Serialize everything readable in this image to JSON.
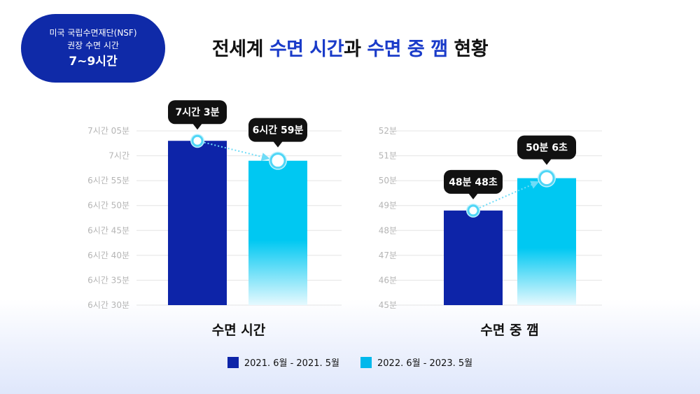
{
  "badge": {
    "line1": "미국 국립수면재단(NSF)",
    "line2": "권장 수면 시간",
    "line3": "7~9시간"
  },
  "title": {
    "part1": "전세계 ",
    "part2": "수면 시간",
    "part3": "과 ",
    "part4": "수면 중 깸",
    "part5": " 현황"
  },
  "colors": {
    "series1": "#0d24a8",
    "series2": "#00b8ec",
    "callout": "#111111",
    "grid": "#e4e4e4",
    "tick": "#b5b5b5"
  },
  "legend": {
    "series1": "2021. 6월 - 2021. 5월",
    "series2": "2022. 6월 - 2023. 5월"
  },
  "chart_data": [
    {
      "type": "bar",
      "title": "수면 시간",
      "unit": "minutes",
      "ylim": [
        390,
        425
      ],
      "yticks": [
        390,
        395,
        400,
        405,
        410,
        415,
        420,
        425
      ],
      "ytick_labels": [
        "6시간 30분",
        "6시간 35분",
        "6시간 40분",
        "6시간 45분",
        "6시간 50분",
        "6시간 55분",
        "7시간",
        "7시간 05분"
      ],
      "series": [
        {
          "name": "2021. 6월 - 2021. 5월",
          "values": [
            423
          ],
          "label": "7시간 3분"
        },
        {
          "name": "2022. 6월 - 2023. 5월",
          "values": [
            419
          ],
          "label": "6시간 59분"
        }
      ],
      "grid": true
    },
    {
      "type": "bar",
      "title": "수면 중 깸",
      "unit": "minutes",
      "ylim": [
        45,
        52
      ],
      "yticks": [
        45,
        46,
        47,
        48,
        49,
        50,
        51,
        52
      ],
      "ytick_labels": [
        "45분",
        "46분",
        "47분",
        "48분",
        "49분",
        "50분",
        "51분",
        "52분"
      ],
      "series": [
        {
          "name": "2021. 6월 - 2021. 5월",
          "values": [
            48.8
          ],
          "label": "48분 48초"
        },
        {
          "name": "2022. 6월 - 2023. 5월",
          "values": [
            50.1
          ],
          "label": "50분 6초"
        }
      ],
      "grid": true
    }
  ]
}
